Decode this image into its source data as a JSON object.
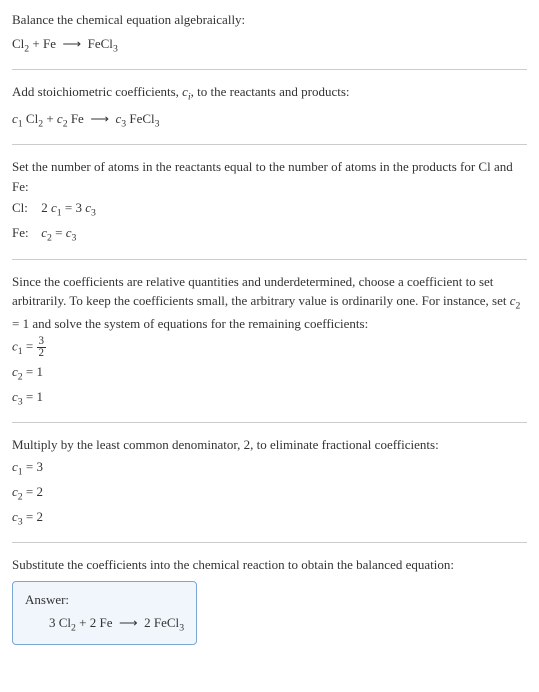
{
  "colors": {
    "text": "#333333",
    "background": "#ffffff",
    "divider": "#cccccc",
    "answer_box_border": "#7ba7d7",
    "answer_box_background": "#f0f6fc"
  },
  "typography": {
    "body_font_size": 13,
    "font_family": "Georgia, 'Times New Roman', serif"
  },
  "section1": {
    "text": "Balance the chemical equation algebraically:",
    "equation_html": "Cl<sub>2</sub> + Fe &nbsp;⟶&nbsp; FeCl<sub>3</sub>"
  },
  "section2": {
    "text_html": "Add stoichiometric coefficients, <span class=\"italic\">c<sub>i</sub></span>, to the reactants and products:",
    "equation_html": "<span class=\"italic\">c</span><sub>1</sub> Cl<sub>2</sub> + <span class=\"italic\">c</span><sub>2</sub> Fe &nbsp;⟶&nbsp; <span class=\"italic\">c</span><sub>3</sub> FeCl<sub>3</sub>"
  },
  "section3": {
    "text": "Set the number of atoms in the reactants equal to the number of atoms in the products for Cl and Fe:",
    "rows": [
      {
        "label": "Cl:",
        "eq_html": "2 <span class=\"italic\">c</span><sub>1</sub> = 3 <span class=\"italic\">c</span><sub>3</sub>"
      },
      {
        "label": "Fe:",
        "eq_html": "<span class=\"italic\">c</span><sub>2</sub> = <span class=\"italic\">c</span><sub>3</sub>"
      }
    ]
  },
  "section4": {
    "text_html": "Since the coefficients are relative quantities and underdetermined, choose a coefficient to set arbitrarily. To keep the coefficients small, the arbitrary value is ordinarily one. For instance, set <span class=\"italic\">c</span><sub>2</sub> = 1 and solve the system of equations for the remaining coefficients:",
    "rows": [
      {
        "html": "<span class=\"italic\">c</span><sub>1</sub> = <span class=\"frac\"><span class=\"num\">3</span><span class=\"den\">2</span></span>"
      },
      {
        "html": "<span class=\"italic\">c</span><sub>2</sub> = 1"
      },
      {
        "html": "<span class=\"italic\">c</span><sub>3</sub> = 1"
      }
    ]
  },
  "section5": {
    "text": "Multiply by the least common denominator, 2, to eliminate fractional coefficients:",
    "rows": [
      {
        "html": "<span class=\"italic\">c</span><sub>1</sub> = 3"
      },
      {
        "html": "<span class=\"italic\">c</span><sub>2</sub> = 2"
      },
      {
        "html": "<span class=\"italic\">c</span><sub>3</sub> = 2"
      }
    ]
  },
  "section6": {
    "text": "Substitute the coefficients into the chemical reaction to obtain the balanced equation:"
  },
  "answer": {
    "label": "Answer:",
    "equation_html": "3 Cl<sub>2</sub> + 2 Fe &nbsp;⟶&nbsp; 2 FeCl<sub>3</sub>"
  }
}
